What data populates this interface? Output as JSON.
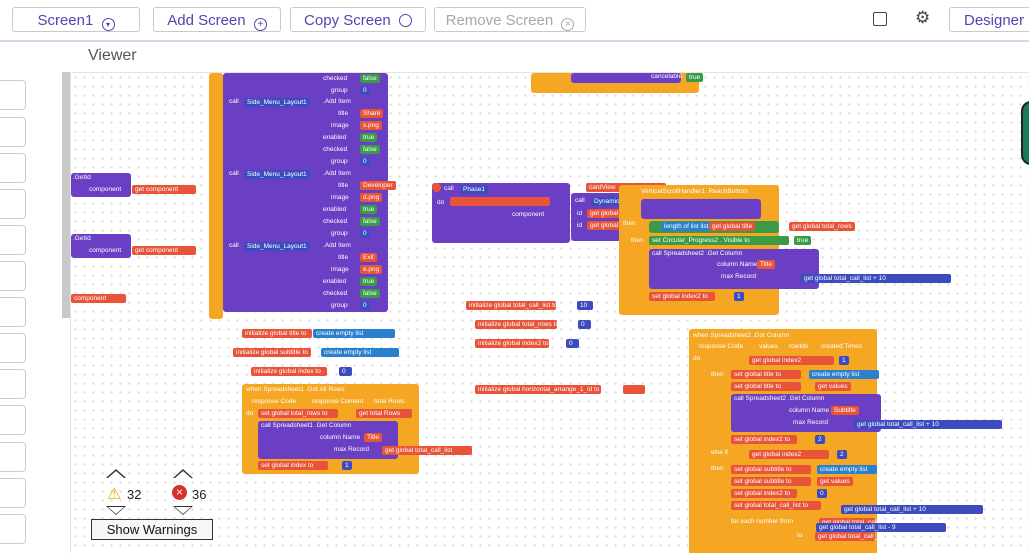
{
  "toolbar": {
    "screen_select": "Screen1",
    "add_screen": "Add Screen",
    "copy_screen": "Copy Screen",
    "remove_screen": "Remove Screen",
    "designer": "Designer"
  },
  "viewer": {
    "title": "Viewer"
  },
  "warnings": {
    "warning_count": "32",
    "error_count": "36",
    "show_button": "Show Warnings"
  },
  "blocks": {
    "checked": "checked",
    "group": "group",
    "false": "false",
    "true": "true",
    "zero": "0",
    "call_side_menu": "Side_Menu_Layout1",
    "add_item": ".Add Item",
    "title": "title",
    "image": "image",
    "enabled": "enabled",
    "share": "Share",
    "share_png": "s.png",
    "developer": "Developer",
    "d_png": "d.png",
    "exit": "Exit",
    "e_png": "e.png",
    "getid": ".GetId",
    "component": "component",
    "get_component": "get component",
    "cancelable": "cancelable",
    "init_title": "initialize global title to",
    "init_subtitle": "initialize global subtitle to",
    "init_index": "initialize global index to",
    "create_empty_list": "create empty list",
    "init_total_call_list": "initialize global total_call_list to",
    "init_total_rows": "initialize global total_rows to",
    "init_index2": "initialize global index2 to",
    "init_horizontal": "initialize global horizontal_arrange_1_id to",
    "ten": "10",
    "when_gotallrows": "when Spreadsheet1 .Got All Rows",
    "response_code": "response Code",
    "response_content": "response Content",
    "total_rows": "total Rows",
    "set_total_rows": "set global total_rows to",
    "get_total_rows": "get total Rows",
    "call_spreadsheet": "call Spreadsheet1 .Get Column",
    "column_name": "column Name",
    "max_record": "max Record",
    "title_str": "Title",
    "get_total_call_list": "get global total_call_list",
    "set_index": "set global index to",
    "one": "1",
    "when_gotcolumn": "when Spreadsheet2 .Got Column",
    "values": "values",
    "rowids": "rowIds",
    "created_times": "created Times",
    "get_index2": "get global index2",
    "set_title": "set global title to",
    "get_values": "get values",
    "subtitle_str": "Subtitle",
    "two": "2",
    "set_index2": "set global index2 to",
    "else_if": "else if",
    "set_subtitle": "set global subtitle to",
    "set_total_call_list": "set global total_call_list to",
    "for_each": "for each number from",
    "nine": "9",
    "to": "to",
    "dynamic_components": "DynamicComponents1 .GetComponent",
    "id": "id",
    "get_card_view": "get global card_view_id",
    "length_of_list": "length of list  list",
    "get_global_title": "get global title",
    "get_global_total_rows": "get global total_rows",
    "set_circular": "set Circular_Progress2 . Visible to",
    "call_spreadsheet2": "call Spreadsheet2 .Get Column",
    "set_index2_1": "set global index2 to",
    "cardview": "cardView",
    "phase1": "Phase1",
    "vertical_scroll": "VerticalScrollHandler1 .ReachBottom"
  }
}
